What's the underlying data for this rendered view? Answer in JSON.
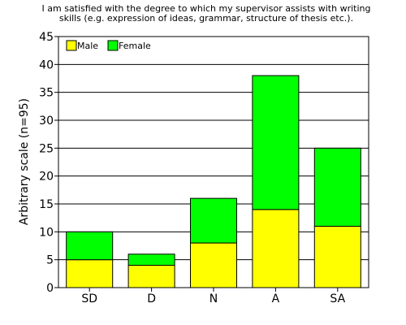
{
  "chart_data": {
    "type": "bar",
    "stacked": true,
    "title": [
      "I am satisfied with the degree to which my supervisor assists with writing",
      "skills (e.g. expression of ideas, grammar, structure of thesis etc.)."
    ],
    "xlabel": "",
    "ylabel": "Arbitrary scale (n=95)",
    "categories": [
      "SD",
      "D",
      "N",
      "A",
      "SA"
    ],
    "series": [
      {
        "name": "Male",
        "color": "#ffff00",
        "values": [
          5,
          4,
          8,
          14,
          11
        ]
      },
      {
        "name": "Female",
        "color": "#00ff00",
        "values": [
          5,
          2,
          8,
          24,
          14
        ]
      }
    ],
    "ylim": [
      0,
      45
    ],
    "yticks": [
      0,
      5,
      10,
      15,
      20,
      25,
      30,
      35,
      40,
      45
    ],
    "grid": true,
    "legend_position": "top-left"
  }
}
